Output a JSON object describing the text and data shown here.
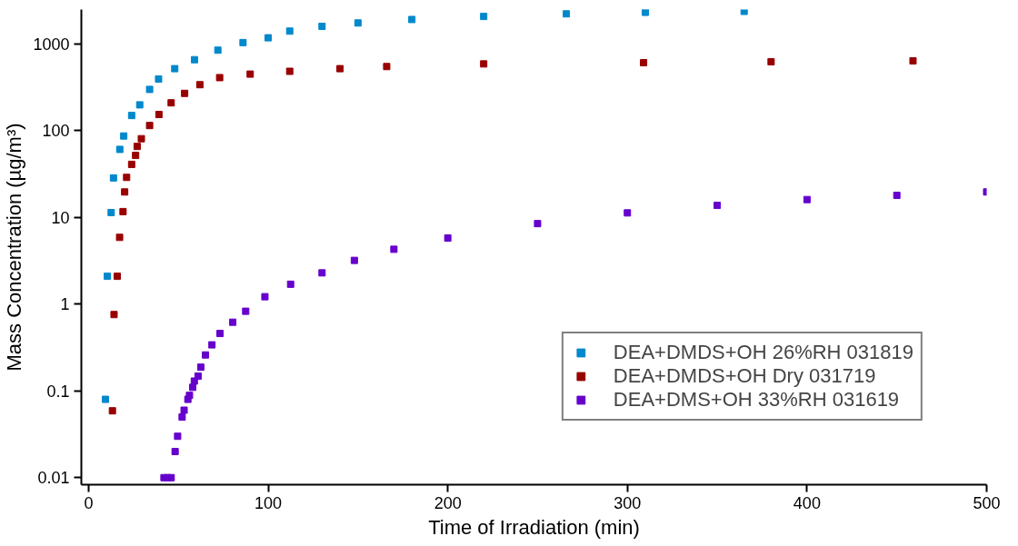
{
  "chart_data": {
    "type": "scatter",
    "xlabel": "Time of Irradiation (min)",
    "ylabel": "Mass Concentration (µg/m³)",
    "log": "y",
    "xlim": [
      -4,
      500
    ],
    "ylim": [
      0.0083,
      2500
    ],
    "xticks": [
      0,
      100,
      200,
      300,
      400,
      500
    ],
    "yticks": [
      0.01,
      0.1,
      1,
      10,
      100,
      1000
    ],
    "grid": false,
    "legend": "bottom right",
    "marker": "square",
    "series": [
      {
        "name": "DEA+DMDS+OH 26%RH 031819",
        "color": "#0088cc",
        "x": [
          9.4,
          10.5,
          12.6,
          13.9,
          17.4,
          19.6,
          24,
          28.5,
          34,
          39,
          48,
          59,
          72,
          86,
          100,
          112,
          130,
          150,
          180,
          220,
          266,
          310,
          365
        ],
        "values": [
          0.08,
          2.1,
          11.4,
          28.6,
          61,
          87,
          150,
          199,
          300,
          395,
          520,
          660,
          850,
          1040,
          1180,
          1410,
          1600,
          1750,
          1920,
          2080,
          2230,
          2320,
          2380
        ]
      },
      {
        "name": "DEA+DMDS+OH Dry 031719",
        "color": "#990000",
        "x": [
          13.3,
          14.2,
          16,
          17.3,
          19.2,
          20.1,
          21.2,
          24,
          26.2,
          27.1,
          29.4,
          34,
          39.2,
          46,
          53.5,
          62,
          73,
          90,
          112,
          140,
          166,
          220,
          309,
          380,
          459
        ],
        "values": [
          0.059,
          0.76,
          2.1,
          5.9,
          11.7,
          19.7,
          29,
          41,
          52,
          66,
          81,
          115,
          154,
          210,
          270,
          340,
          410,
          450,
          485,
          520,
          550,
          590,
          610,
          625,
          640
        ]
      },
      {
        "name": "DEA+DMS+OH 33%RH 031619",
        "color": "#6600cc",
        "x": [
          42,
          44,
          46,
          48.2,
          49.6,
          52.1,
          53.2,
          55.3,
          56.2,
          58,
          58.9,
          61,
          62.5,
          65.1,
          68.7,
          73.2,
          80.3,
          87.5,
          98.2,
          112.5,
          130,
          148,
          170,
          200,
          250,
          300,
          350,
          400,
          450,
          500
        ],
        "values": [
          0.01,
          0.01,
          0.01,
          0.02,
          0.03,
          0.05,
          0.06,
          0.08,
          0.089,
          0.11,
          0.13,
          0.148,
          0.188,
          0.26,
          0.34,
          0.46,
          0.62,
          0.83,
          1.22,
          1.7,
          2.3,
          3.2,
          4.3,
          5.8,
          8.5,
          11.3,
          13.8,
          16.1,
          18,
          19.7
        ]
      }
    ]
  }
}
